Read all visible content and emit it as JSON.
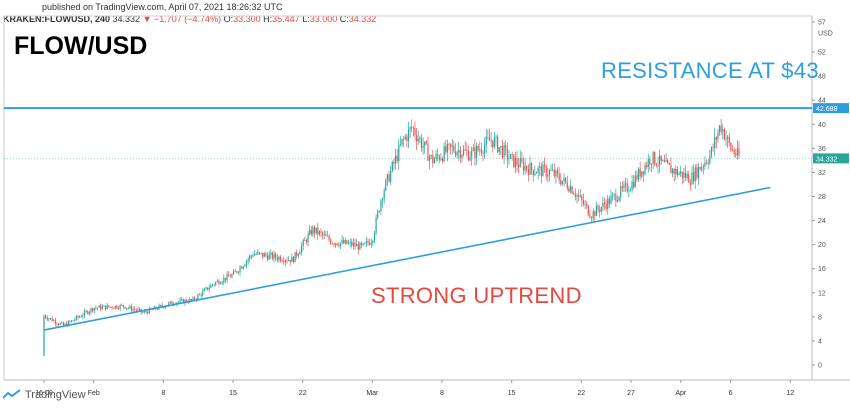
{
  "header": {
    "published": "published on TradingView.com, April 07, 2021 18:26:32 UTC",
    "symbol": "KRAKEN:FLOWUSD, 240",
    "last": "34.332",
    "change": "−1.707 (−4.74%)",
    "open_label": "O:",
    "open": "33.300",
    "high_label": "H:",
    "high": "35.447",
    "low_label": "L:",
    "low": "33.000",
    "close_label": "C:",
    "close": "34.332"
  },
  "footer": {
    "brand": "TradingView"
  },
  "colors": {
    "up": "#26a69a",
    "down": "#ef5350",
    "line": "#2f9de0",
    "annotation_red": "#e8473e"
  },
  "chart_data": {
    "type": "candlestick",
    "title": "FLOW/USD",
    "y_unit": "USD",
    "ylim": [
      -1,
      57
    ],
    "y_ticks": [
      "0",
      "4",
      "8",
      "12",
      "16",
      "20",
      "24",
      "28",
      "32",
      "36",
      "40",
      "44",
      "48",
      "52",
      "57"
    ],
    "x_ticks": [
      "16:00",
      "Feb",
      "8",
      "15",
      "22",
      "Mar",
      "8",
      "15",
      "22",
      "27",
      "Apr",
      "6",
      "12"
    ],
    "price_labels": [
      {
        "text": "42.688",
        "value": 42.688,
        "style": "line"
      },
      {
        "text": "34.332",
        "value": 34.332,
        "style": "last"
      }
    ],
    "annotations": {
      "resistance": "RESISTANCE AT $43",
      "uptrend": "STRONG UPTREND"
    },
    "resistance_level": 42.688,
    "trendline": {
      "start": [
        "Jan 27",
        5.8
      ],
      "end": [
        "Apr 10",
        29.5
      ]
    },
    "price_path": [
      [
        "Jan 27",
        8.2
      ],
      [
        "Jan 29",
        6.5
      ],
      [
        "Feb 1",
        9.5
      ],
      [
        "Feb 4",
        9.8
      ],
      [
        "Feb 6",
        8.7
      ],
      [
        "Feb 9",
        10.4
      ],
      [
        "Feb 11",
        10.8
      ],
      [
        "Feb 13",
        13.5
      ],
      [
        "Feb 15",
        15.0
      ],
      [
        "Feb 17",
        18.5
      ],
      [
        "Feb 19",
        18.0
      ],
      [
        "Feb 21",
        17.5
      ],
      [
        "Feb 23",
        22.5
      ],
      [
        "Feb 25",
        20.5
      ],
      [
        "Feb 27",
        20.0
      ],
      [
        "Feb 28",
        19.5
      ],
      [
        "Mar 1",
        21.0
      ],
      [
        "Mar 2",
        28.5
      ],
      [
        "Mar 4",
        37.0
      ],
      [
        "Mar 5",
        39.5
      ],
      [
        "Mar 7",
        34.0
      ],
      [
        "Mar 9",
        36.0
      ],
      [
        "Mar 11",
        35.0
      ],
      [
        "Mar 13",
        37.5
      ],
      [
        "Mar 15",
        34.0
      ],
      [
        "Mar 17",
        32.5
      ],
      [
        "Mar 19",
        32.0
      ],
      [
        "Mar 21",
        29.5
      ],
      [
        "Mar 23",
        25.0
      ],
      [
        "Mar 25",
        27.5
      ],
      [
        "Mar 27",
        30.0
      ],
      [
        "Mar 29",
        34.5
      ],
      [
        "Mar 31",
        32.5
      ],
      [
        "Apr 2",
        31.0
      ],
      [
        "Apr 4",
        35.0
      ],
      [
        "Apr 5",
        40.0
      ],
      [
        "Apr 6",
        36.0
      ],
      [
        "Apr 7",
        34.3
      ]
    ]
  }
}
